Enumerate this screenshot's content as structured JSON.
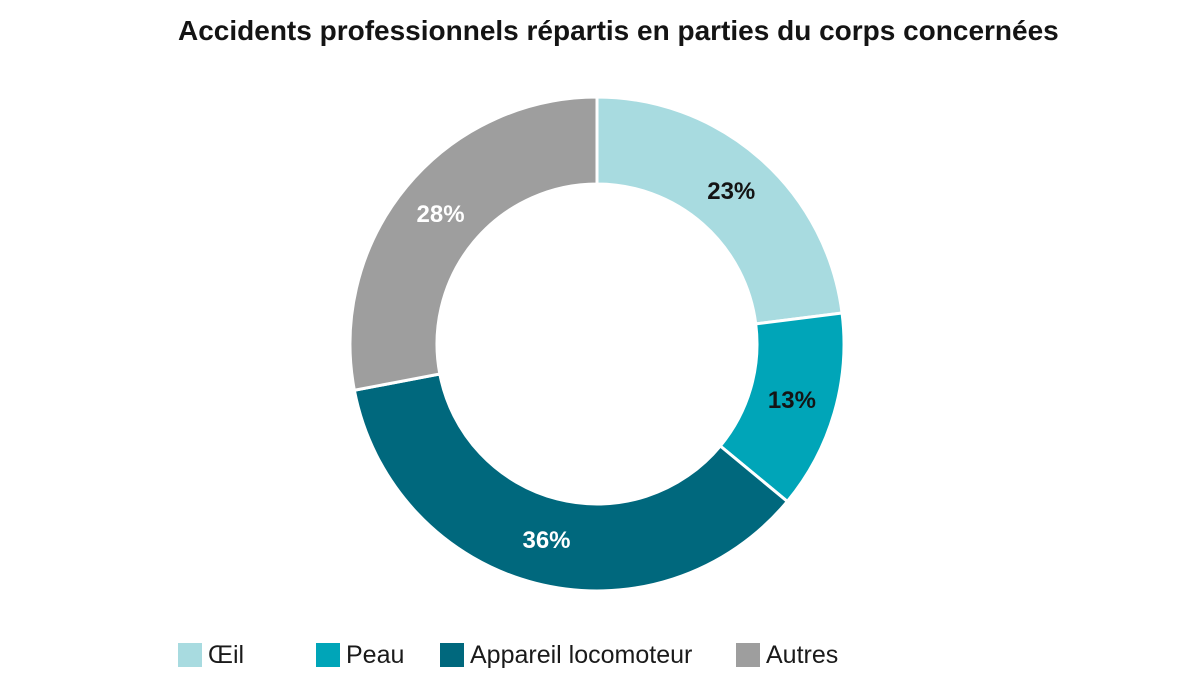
{
  "chart_data": {
    "type": "pie",
    "variant": "donut",
    "title": "Accidents professionnels répartis en parties du corps concernées",
    "categories": [
      "Œil",
      "Peau",
      "Appareil locomoteur",
      "Autres"
    ],
    "values": [
      23,
      13,
      36,
      28
    ],
    "data_labels": [
      "23%",
      "13%",
      "36%",
      "28%"
    ],
    "colors": [
      "#a8dbe0",
      "#00a5b8",
      "#00687d",
      "#9e9e9e"
    ],
    "label_colors": [
      "#141414",
      "#141414",
      "#ffffff",
      "#ffffff"
    ],
    "unit": "%",
    "legend_position": "bottom",
    "start_angle": "12 o'clock",
    "direction": "clockwise"
  }
}
